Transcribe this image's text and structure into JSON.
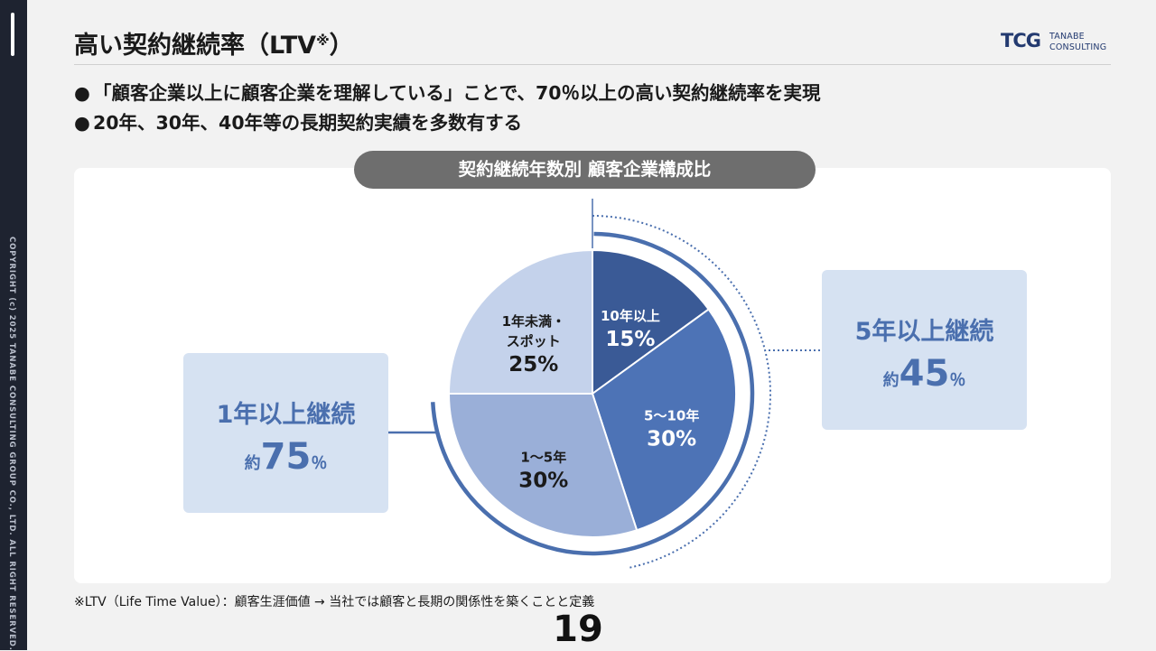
{
  "copyright": "COPYRIGHT (c) 2025 TANABE CONSULTING GROUP CO., LTD. ALL RIGHT RESERVED.",
  "title": {
    "main": "高い契約継続率（LTV",
    "mark": "※",
    "close": "）"
  },
  "logo": {
    "mark": "TCG",
    "line1": "TANABE",
    "line2": "CONSULTING",
    "color": "#233a70"
  },
  "bullets": [
    {
      "marker": "●",
      "text": "「顧客企業以上に顧客企業を理解している」ことで、70％以上の高い契約継続率を実現"
    },
    {
      "marker": "●",
      "text": "20年、30年、40年等の長期契約実績を多数有する"
    }
  ],
  "chart_data": {
    "type": "pie",
    "title": "契約継続年数別 顧客企業構成比",
    "slices": [
      {
        "label": "10年以上",
        "value": 15,
        "display": "15%",
        "color": "#3a5a96",
        "text_color": "#ffffff"
      },
      {
        "label": "5〜10年",
        "value": 30,
        "display": "30%",
        "color": "#4d73b6",
        "text_color": "#ffffff"
      },
      {
        "label": "1〜5年",
        "value": 30,
        "display": "30%",
        "color": "#9aafd8",
        "text_color": "#1a1a1a"
      },
      {
        "label": "1年未満・\nスポット",
        "value": 25,
        "display": "25%",
        "color": "#c4d2eb",
        "text_color": "#1a1a1a"
      }
    ]
  },
  "callouts": {
    "left": {
      "label": "1年以上継続",
      "prefix": "約",
      "value": "75",
      "suffix": "％"
    },
    "right": {
      "label": "5年以上継続",
      "prefix": "約",
      "value": "45",
      "suffix": "％"
    }
  },
  "colors": {
    "accent": "#4a6fae",
    "callout_bg": "#d6e2f2",
    "title_pill": "#6e6e6e"
  },
  "footnote": "※LTV（Life Time Value）：顧客生涯価値 → 当社では顧客と長期の関係性を築くことと定義",
  "page_number": "19"
}
